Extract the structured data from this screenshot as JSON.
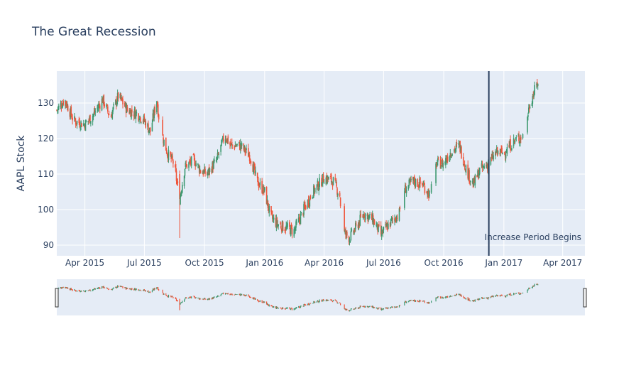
{
  "chart_data": {
    "type": "candlestick",
    "title": "The Great Recession",
    "ylabel": "AAPL Stock",
    "xlabel": "",
    "x_range": [
      "2015-02-17",
      "2017-05-05"
    ],
    "ylim": [
      87,
      139
    ],
    "x_ticks": [
      {
        "date": "2015-04-01",
        "label": "Apr 2015"
      },
      {
        "date": "2015-07-01",
        "label": "Jul 2015"
      },
      {
        "date": "2015-10-01",
        "label": "Oct 2015"
      },
      {
        "date": "2016-01-01",
        "label": "Jan 2016"
      },
      {
        "date": "2016-04-01",
        "label": "Apr 2016"
      },
      {
        "date": "2016-07-01",
        "label": "Jul 2016"
      },
      {
        "date": "2016-10-01",
        "label": "Oct 2016"
      },
      {
        "date": "2017-01-01",
        "label": "Jan 2017"
      },
      {
        "date": "2017-04-01",
        "label": "Apr 2017"
      }
    ],
    "y_ticks": [
      90,
      100,
      110,
      120,
      130
    ],
    "increasing_color": "#3D9970",
    "decreasing_color": "#EF553B",
    "shape": {
      "type": "vertical-line",
      "date": "2016-12-09",
      "color": "#2a3f5f"
    },
    "annotation": {
      "text": "Increase Period Begins",
      "date": "2016-12-09",
      "y": 91
    },
    "rangeslider": true,
    "series_points": [
      [
        "2015-02-17",
        128
      ],
      [
        "2015-03-01",
        131
      ],
      [
        "2015-03-15",
        125
      ],
      [
        "2015-04-01",
        124
      ],
      [
        "2015-04-15",
        127
      ],
      [
        "2015-04-28",
        131
      ],
      [
        "2015-05-10",
        126
      ],
      [
        "2015-05-22",
        132
      ],
      [
        "2015-06-05",
        128
      ],
      [
        "2015-06-20",
        127
      ],
      [
        "2015-07-01",
        125
      ],
      [
        "2015-07-10",
        122
      ],
      [
        "2015-07-20",
        131
      ],
      [
        "2015-07-25",
        123
      ],
      [
        "2015-08-05",
        116
      ],
      [
        "2015-08-15",
        113
      ],
      [
        "2015-08-24",
        103
      ],
      [
        "2015-09-01",
        112
      ],
      [
        "2015-09-15",
        114
      ],
      [
        "2015-09-25",
        111
      ],
      [
        "2015-10-05",
        110
      ],
      [
        "2015-10-20",
        114
      ],
      [
        "2015-11-01",
        121
      ],
      [
        "2015-11-10",
        118
      ],
      [
        "2015-11-25",
        118
      ],
      [
        "2015-12-10",
        115
      ],
      [
        "2015-12-20",
        108
      ],
      [
        "2016-01-01",
        105
      ],
      [
        "2016-01-10",
        98
      ],
      [
        "2016-01-20",
        96
      ],
      [
        "2016-02-01",
        95
      ],
      [
        "2016-02-15",
        94
      ],
      [
        "2016-03-01",
        100
      ],
      [
        "2016-03-15",
        105
      ],
      [
        "2016-04-01",
        109
      ],
      [
        "2016-04-15",
        108
      ],
      [
        "2016-04-25",
        104
      ],
      [
        "2016-04-29",
        94
      ],
      [
        "2016-05-10",
        92
      ],
      [
        "2016-05-20",
        95
      ],
      [
        "2016-06-01",
        99
      ],
      [
        "2016-06-15",
        97
      ],
      [
        "2016-06-27",
        93
      ],
      [
        "2016-07-10",
        96
      ],
      [
        "2016-07-25",
        99
      ],
      [
        "2016-07-30",
        105
      ],
      [
        "2016-08-15",
        108
      ],
      [
        "2016-08-30",
        107
      ],
      [
        "2016-09-10",
        104
      ],
      [
        "2016-09-20",
        113
      ],
      [
        "2016-10-01",
        113
      ],
      [
        "2016-10-10",
        116
      ],
      [
        "2016-10-25",
        118
      ],
      [
        "2016-11-05",
        111
      ],
      [
        "2016-11-15",
        107
      ],
      [
        "2016-11-25",
        111
      ],
      [
        "2016-12-09",
        113
      ],
      [
        "2016-12-20",
        116
      ],
      [
        "2017-01-01",
        116
      ],
      [
        "2017-01-15",
        119
      ],
      [
        "2017-01-31",
        121
      ],
      [
        "2017-02-10",
        130
      ],
      [
        "2017-02-22",
        136
      ]
    ]
  }
}
